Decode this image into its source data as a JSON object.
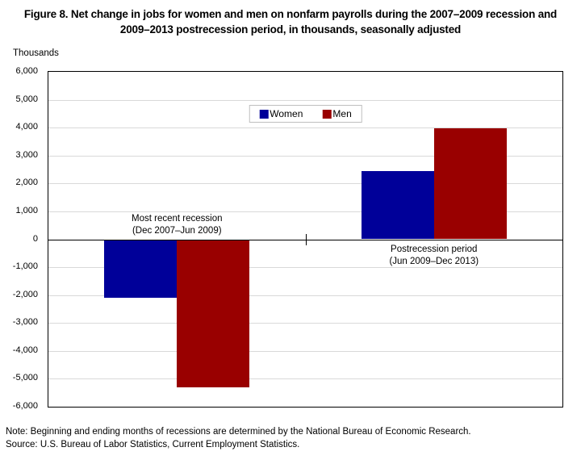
{
  "figure": {
    "title": "Figure 8. Net change in jobs for women and men on nonfarm payrolls during the 2007–2009 recession and 2009–2013 postrecession period, in thousands, seasonally adjusted",
    "axis_unit_label": "Thousands",
    "note": "Note: Beginning and ending months of recessions are determined by the National Bureau of Economic Research.",
    "source": "Source: U.S. Bureau of Labor Statistics, Current Employment Statistics."
  },
  "chart_data": {
    "type": "bar",
    "title": "Figure 8. Net change in jobs for women and men on nonfarm payrolls during the 2007–2009 recession and 2009–2013 postrecession period, in thousands, seasonally adjusted",
    "categories": [
      "Most recent recession (Dec 2007–Jun 2009)",
      "Postrecession period (Jun 2009–Dec 2013)"
    ],
    "groups": [
      {
        "line1": "Most recent recession",
        "line2": "(Dec 2007–Jun 2009)"
      },
      {
        "line1": "Postrecession period",
        "line2": "(Jun 2009–Dec 2013)"
      }
    ],
    "series": [
      {
        "name": "Women",
        "color": "#000099",
        "values": [
          -2100,
          2450
        ]
      },
      {
        "name": "Men",
        "color": "#990000",
        "values": [
          -5300,
          3970
        ]
      }
    ],
    "ylabel": "Thousands",
    "ylim": [
      -6000,
      6000
    ],
    "ytick_step": 1000,
    "yticks": [
      {
        "value": 6000,
        "label": "6,000"
      },
      {
        "value": 5000,
        "label": "5,000"
      },
      {
        "value": 4000,
        "label": "4,000"
      },
      {
        "value": 3000,
        "label": "3,000"
      },
      {
        "value": 2000,
        "label": "2,000"
      },
      {
        "value": 1000,
        "label": "1,000"
      },
      {
        "value": 0,
        "label": "0"
      },
      {
        "value": -1000,
        "label": "-1,000"
      },
      {
        "value": -2000,
        "label": "-2,000"
      },
      {
        "value": -3000,
        "label": "-3,000"
      },
      {
        "value": -4000,
        "label": "-4,000"
      },
      {
        "value": -5000,
        "label": "-5,000"
      },
      {
        "value": -6000,
        "label": "-6,000"
      }
    ],
    "grid": true,
    "legend_position": "top-center",
    "gridline_color": "#d9d9d9"
  }
}
